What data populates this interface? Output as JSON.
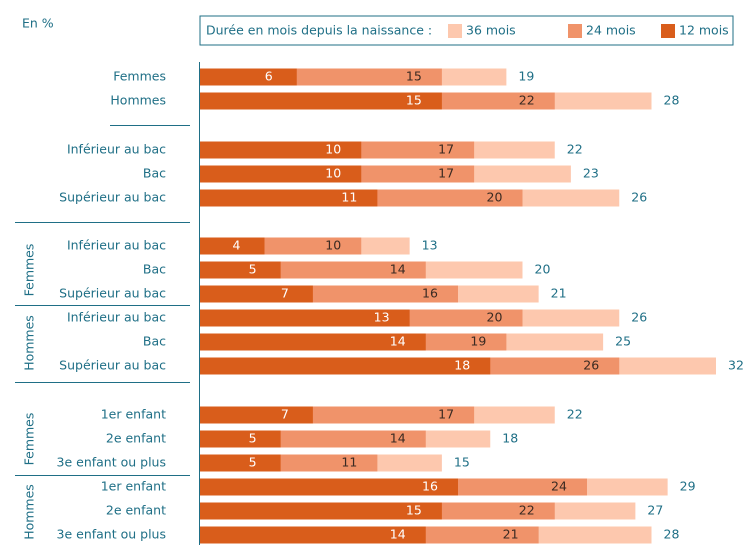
{
  "chart_data": {
    "type": "bar",
    "unit_label": "En %",
    "legend_title": "Durée en mois depuis la naissance :",
    "categories": [
      "Femmes",
      "Hommes",
      "Inférieur au bac",
      "Bac",
      "Supérieur au bac",
      "Inférieur au bac",
      "Bac",
      "Supérieur au bac",
      "Inférieur au bac",
      "Bac",
      "Supérieur au bac",
      "1er enfant",
      "2e enfant",
      "3e enfant ou plus",
      "1er enfant",
      "2e enfant",
      "3e enfant ou plus"
    ],
    "group_labels": [
      "Femmes",
      "Hommes",
      "Femmes",
      "Hommes"
    ],
    "series": [
      {
        "name": "36 mois",
        "color": "#fdc8ae",
        "values": [
          19,
          28,
          22,
          23,
          26,
          13,
          20,
          21,
          26,
          25,
          32,
          22,
          18,
          15,
          29,
          27,
          28
        ]
      },
      {
        "name": "24 mois",
        "color": "#f0936a",
        "values": [
          15,
          22,
          17,
          17,
          20,
          10,
          14,
          16,
          20,
          19,
          26,
          17,
          14,
          11,
          24,
          22,
          21
        ]
      },
      {
        "name": "12 mois",
        "color": "#d95d1b",
        "values": [
          6,
          15,
          10,
          10,
          11,
          4,
          5,
          7,
          13,
          14,
          18,
          7,
          5,
          5,
          16,
          15,
          14
        ]
      }
    ]
  }
}
